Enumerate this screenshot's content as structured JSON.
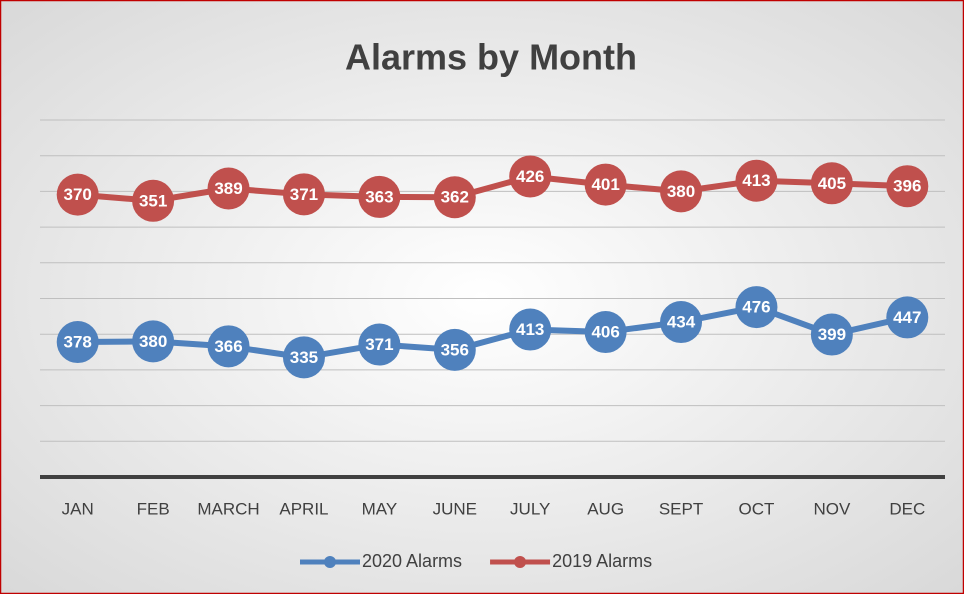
{
  "chart_data": {
    "type": "line",
    "title": "Alarms by Month",
    "categories": [
      "JAN",
      "FEB",
      "MARCH",
      "APRIL",
      "MAY",
      "JUNE",
      "JULY",
      "AUG",
      "SEPT",
      "OCT",
      "NOV",
      "DEC"
    ],
    "series": [
      {
        "name": "2020 Alarms",
        "color": "#4f81bd",
        "values": [
          378,
          380,
          366,
          335,
          371,
          356,
          413,
          406,
          434,
          476,
          399,
          447
        ]
      },
      {
        "name": "2019 Alarms",
        "color": "#c0504d",
        "axis": "y2",
        "values": [
          370,
          351,
          389,
          371,
          363,
          362,
          426,
          401,
          380,
          413,
          405,
          396
        ]
      }
    ],
    "ylim": [
      0,
      1000
    ],
    "yticks": [
      0,
      100,
      200,
      300,
      400,
      500,
      600,
      700,
      800,
      900,
      1000
    ],
    "y2lim": [
      -500,
      600
    ],
    "grid": true,
    "legend": "bottom"
  }
}
